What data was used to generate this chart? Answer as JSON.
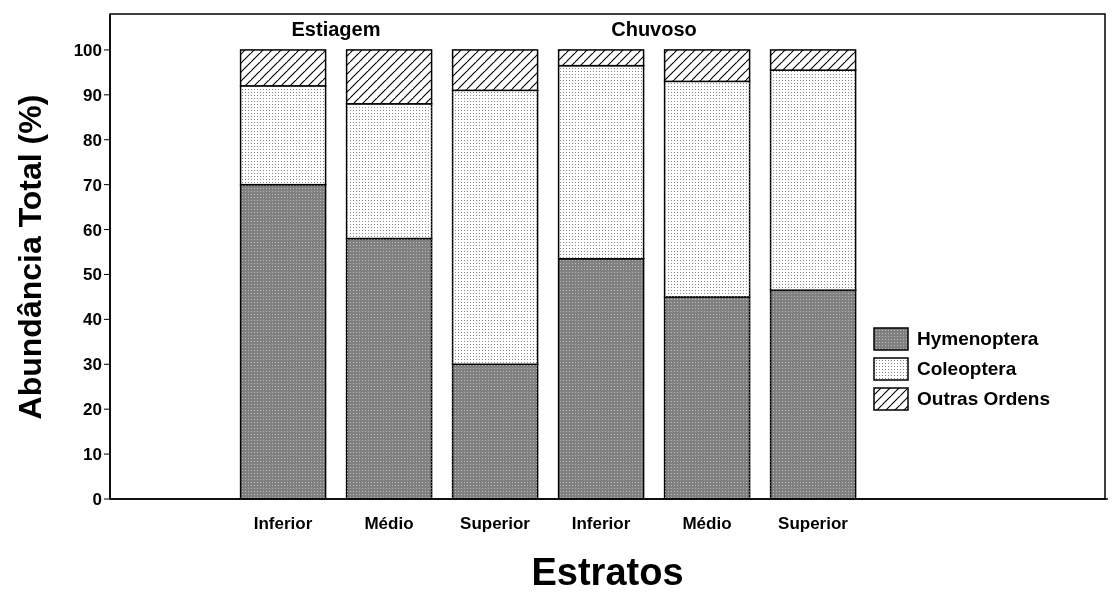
{
  "chart_data": {
    "type": "bar",
    "stacked": true,
    "xlabel": "Estratos",
    "ylabel": "Abundância Total (%)",
    "categories": [
      "Inferior",
      "Médio",
      "Superior",
      "Inferior",
      "Médio",
      "Superior"
    ],
    "series": [
      {
        "name": "Hymenoptera",
        "color": "#808080",
        "values": [
          70,
          58,
          30,
          53.5,
          45,
          46.5
        ]
      },
      {
        "name": "Coleoptera",
        "color": "#ffffff",
        "values": [
          22,
          30,
          61,
          43,
          48,
          49
        ]
      },
      {
        "name": "Outras Ordens",
        "color": "#ffffff",
        "values": [
          8,
          12,
          9,
          3.5,
          7,
          4.5
        ]
      }
    ],
    "ylim": [
      0,
      108
    ],
    "yticks": [
      0,
      10,
      20,
      30,
      40,
      50,
      60,
      70,
      80,
      90,
      100
    ],
    "grid": false,
    "legend": "right",
    "annotations": [
      "Estiagem",
      "Chuvoso"
    ]
  }
}
